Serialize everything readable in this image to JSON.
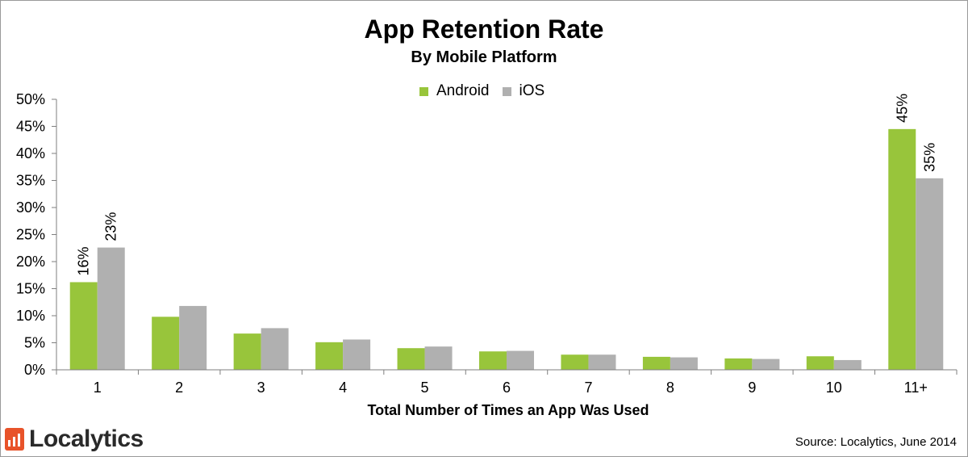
{
  "header": {
    "title": "App Retention Rate",
    "subtitle": "By Mobile Platform"
  },
  "footer": {
    "brand": "Localytics",
    "source": "Source: Localytics, June 2014"
  },
  "colors": {
    "android": "#98c53b",
    "ios": "#b0b0b0"
  },
  "chart_data": {
    "type": "bar",
    "title": "App Retention Rate",
    "subtitle": "By Mobile Platform",
    "xlabel": "Total Number of Times an App Was Used",
    "ylabel": "",
    "categories": [
      "1",
      "2",
      "3",
      "4",
      "5",
      "6",
      "7",
      "8",
      "9",
      "10",
      "11+"
    ],
    "series": [
      {
        "name": "Android",
        "values": [
          16.2,
          9.8,
          6.7,
          5.1,
          4.0,
          3.4,
          2.8,
          2.4,
          2.1,
          2.5,
          44.5
        ],
        "labels": [
          "16%",
          "",
          "",
          "",
          "",
          "",
          "",
          "",
          "",
          "",
          "45%"
        ]
      },
      {
        "name": "iOS",
        "values": [
          22.6,
          11.8,
          7.7,
          5.6,
          4.3,
          3.5,
          2.8,
          2.3,
          2.0,
          1.8,
          35.4
        ],
        "labels": [
          "23%",
          "",
          "",
          "",
          "",
          "",
          "",
          "",
          "",
          "",
          "35%"
        ]
      }
    ],
    "ylim": [
      0,
      50
    ],
    "yticks": [
      "0%",
      "5%",
      "10%",
      "15%",
      "20%",
      "25%",
      "30%",
      "35%",
      "40%",
      "45%",
      "50%"
    ],
    "grid": false,
    "legend": "top-center"
  }
}
